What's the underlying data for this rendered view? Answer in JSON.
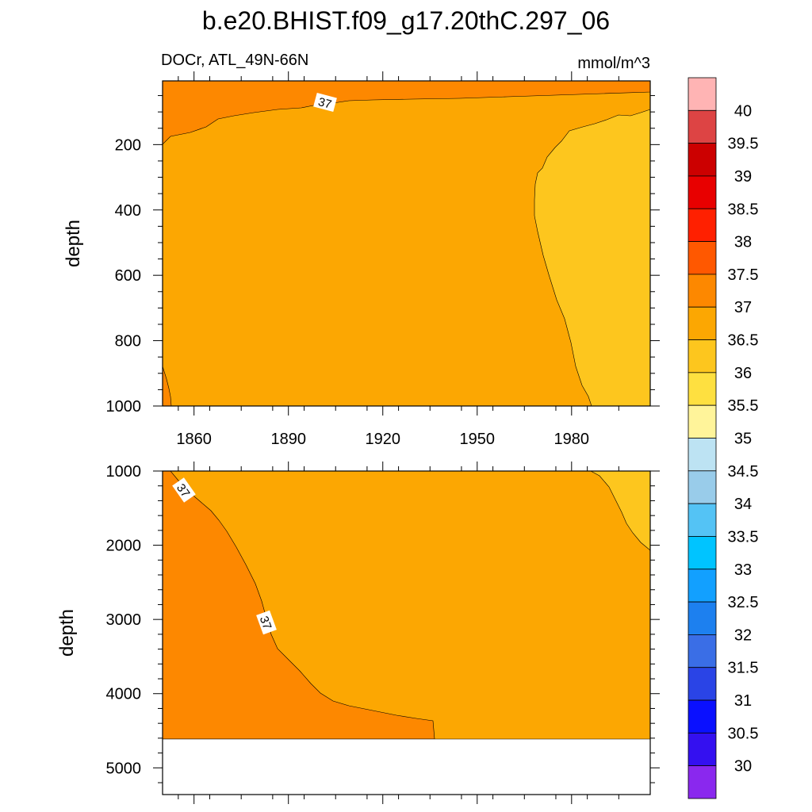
{
  "title": "b.e20.BHIST.f09_g17.20thC.297_06",
  "subtitle_left": "DOCr, ATL_49N-66N",
  "subtitle_right": "mmol/m^3",
  "colors": {
    "c36": "#fdc61e",
    "c36_5": "#fca702",
    "c37": "#fd8800",
    "missing": "#ffffff",
    "line": "#000000"
  },
  "chart_data": [
    {
      "type": "contour",
      "panel": "upper",
      "ylabel": "depth",
      "xlabel": "",
      "xlim": [
        1850,
        2005
      ],
      "ylim": [
        1000,
        5
      ],
      "xticks": [
        1860,
        1890,
        1920,
        1950,
        1980
      ],
      "yticks": [
        200,
        400,
        600,
        800,
        1000
      ],
      "contour_labels": [
        {
          "value": "37",
          "x": 1904,
          "y": 70
        }
      ],
      "regions": [
        {
          "level": "36.5-37",
          "note": "bulk of column"
        },
        {
          "level": "37-37.5",
          "note": "near surface, thins toward 2005"
        },
        {
          "level": "36-36.5",
          "note": "after ~1967 below ~100 m"
        }
      ]
    },
    {
      "type": "contour",
      "panel": "lower",
      "ylabel": "depth",
      "xlabel": "",
      "xlim": [
        1850,
        2005
      ],
      "ylim": [
        5360,
        1000
      ],
      "yticks": [
        1000,
        2000,
        3000,
        4000,
        5000
      ],
      "missing_below_depth": 4620,
      "contour_labels": [
        {
          "value": "37",
          "x": 1857,
          "y": 1250
        },
        {
          "value": "37",
          "x": 1882,
          "y": 3050
        }
      ],
      "regions": [
        {
          "level": "37-37.5",
          "note": "western wedge, deepening eastward to ~1937"
        },
        {
          "level": "36.5-37",
          "note": "bulk"
        },
        {
          "level": "36-36.5",
          "note": "upper-right corner after ~1986"
        }
      ]
    }
  ],
  "colorbar": {
    "labels": [
      "40",
      "39.5",
      "39",
      "38.5",
      "38",
      "37.5",
      "37",
      "36.5",
      "36",
      "35.5",
      "35",
      "34.5",
      "34",
      "33.5",
      "33",
      "32.5",
      "32",
      "31.5",
      "31",
      "30.5",
      "30"
    ],
    "colors": [
      "#ffb4b4",
      "#dd4444",
      "#cc0000",
      "#e80000",
      "#ff2000",
      "#ff5800",
      "#fd8800",
      "#fca702",
      "#fdc61e",
      "#fee040",
      "#fff49a",
      "#bde3f3",
      "#99ccea",
      "#54c3f5",
      "#00c4ff",
      "#12a0ff",
      "#1d80ef",
      "#3a6ee6",
      "#2a44e6",
      "#0a10ff",
      "#3410f0",
      "#8a28ee"
    ]
  }
}
